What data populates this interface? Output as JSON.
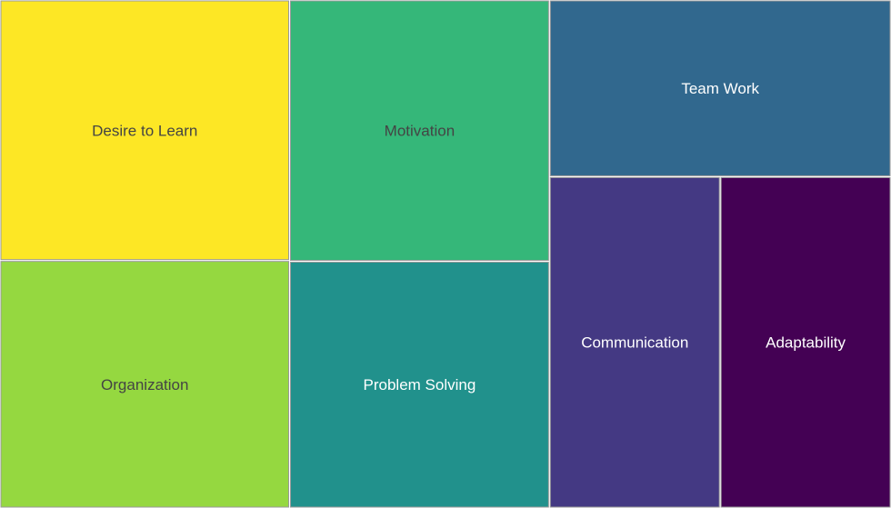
{
  "chart_data": {
    "type": "treemap",
    "items": [
      {
        "label": "Desire to Learn",
        "value": 10,
        "color": "#fde725",
        "text_color": "#444444"
      },
      {
        "label": "Organization",
        "value": 9.5,
        "color": "#95d840",
        "text_color": "#444444"
      },
      {
        "label": "Motivation",
        "value": 9,
        "color": "#35b779",
        "text_color": "#444444"
      },
      {
        "label": "Problem Solving",
        "value": 8.5,
        "color": "#21918c",
        "text_color": "#ffffff"
      },
      {
        "label": "Team Work",
        "value": 8,
        "color": "#31688e",
        "text_color": "#ffffff"
      },
      {
        "label": "Communication",
        "value": 7.5,
        "color": "#443983",
        "text_color": "#ffffff"
      },
      {
        "label": "Adaptability",
        "value": 7.5,
        "color": "#440154",
        "text_color": "#ffffff"
      }
    ]
  }
}
